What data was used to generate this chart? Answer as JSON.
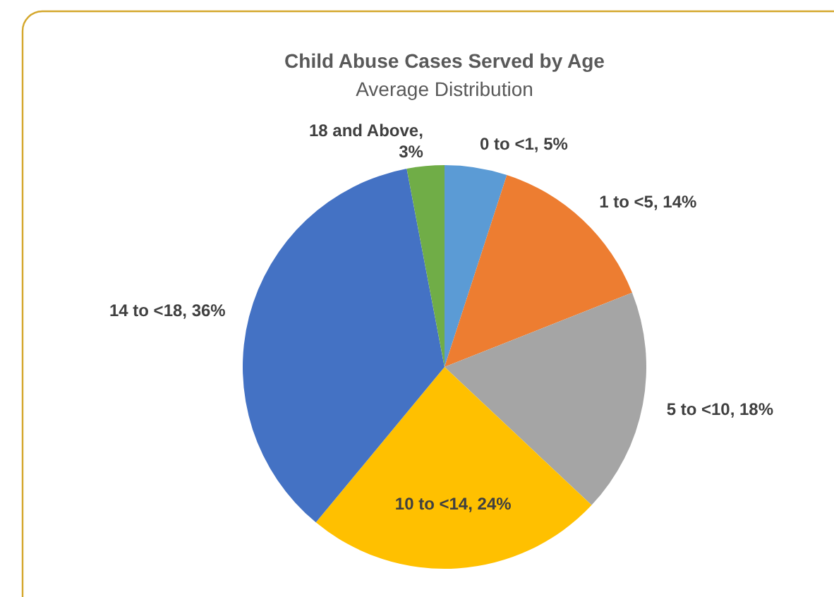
{
  "chart_data": {
    "type": "pie",
    "title": "Child Abuse Cases Served by Age",
    "subtitle": "Average Distribution",
    "categories": [
      "0 to <1",
      "1 to <5",
      "5 to <10",
      "10 to <14",
      "14 to <18",
      "18 and Above"
    ],
    "value_labels": [
      ", 5%",
      ", 14%",
      ", 18%",
      ", 24%",
      ", 36%",
      ", 3%"
    ],
    "values": [
      5,
      14,
      18,
      24,
      36,
      3
    ],
    "colors": [
      "#5b9bd5",
      "#ed7d31",
      "#a5a5a5",
      "#ffc000",
      "#4472c4",
      "#70ad47"
    ]
  }
}
